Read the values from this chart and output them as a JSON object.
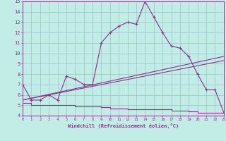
{
  "xlabel": "Windchill (Refroidissement éolien,°C)",
  "bg_color": "#c2ece6",
  "grid_color": "#9dbfcc",
  "line_color": "#883388",
  "xlim": [
    0,
    23
  ],
  "ylim": [
    4,
    15
  ],
  "yticks": [
    4,
    5,
    6,
    7,
    8,
    9,
    10,
    11,
    12,
    13,
    14,
    15
  ],
  "xticks": [
    0,
    1,
    2,
    3,
    4,
    5,
    6,
    7,
    8,
    9,
    10,
    11,
    12,
    13,
    14,
    15,
    16,
    17,
    18,
    19,
    20,
    21,
    22,
    23
  ],
  "line1_x": [
    0,
    1,
    2,
    3,
    4,
    5,
    6,
    7,
    8,
    9,
    10,
    11,
    12,
    13,
    14,
    15,
    16,
    17,
    18,
    19,
    20,
    21,
    22,
    23
  ],
  "line1_y": [
    7.0,
    5.5,
    5.5,
    6.0,
    5.5,
    7.8,
    7.5,
    7.0,
    7.0,
    11.0,
    12.0,
    12.6,
    13.0,
    12.8,
    15.0,
    13.5,
    12.0,
    10.7,
    10.5,
    9.7,
    8.0,
    6.5,
    6.5,
    4.3
  ],
  "line2_x": [
    0,
    23
  ],
  "line2_y": [
    5.5,
    9.3
  ],
  "line3_x": [
    0,
    23
  ],
  "line3_y": [
    5.5,
    9.7
  ],
  "stair_x": [
    0,
    1,
    1,
    2,
    2,
    3,
    3,
    4,
    4,
    5,
    5,
    6,
    6,
    7,
    7,
    8,
    8,
    9,
    9,
    10,
    10,
    11,
    11,
    12,
    12,
    13,
    13,
    14,
    14,
    15,
    15,
    16,
    16,
    17,
    17,
    18,
    18,
    19,
    19,
    20,
    20,
    21,
    21,
    22,
    22,
    23
  ],
  "stair_y": [
    5.2,
    5.2,
    5.0,
    5.0,
    5.0,
    5.0,
    5.0,
    5.0,
    5.0,
    5.0,
    5.0,
    5.0,
    4.9,
    4.9,
    4.9,
    4.9,
    4.9,
    4.9,
    4.8,
    4.8,
    4.7,
    4.7,
    4.7,
    4.7,
    4.6,
    4.6,
    4.6,
    4.6,
    4.6,
    4.6,
    4.6,
    4.6,
    4.6,
    4.6,
    4.5,
    4.5,
    4.5,
    4.5,
    4.4,
    4.4,
    4.3,
    4.3,
    4.3,
    4.3,
    4.3,
    4.3
  ]
}
